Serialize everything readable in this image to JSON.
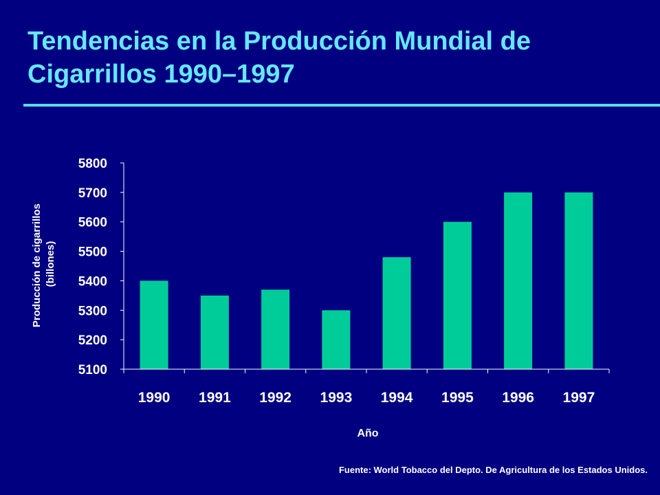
{
  "slide": {
    "title": "Tendencias en la Producción Mundial de Cigarrillos 1990–1997",
    "source": "Fuente: World Tobacco del Depto. De Agricultura de los Estados Unidos."
  },
  "colors": {
    "background": "#000080",
    "title": "#66e6ff",
    "rule": "#55ddff",
    "bar": "#00cc99",
    "axis": "#ffffff"
  },
  "chart_data": {
    "type": "bar",
    "title": "",
    "xlabel": "Año",
    "ylabel": "Producción de cigarrillos (billones)",
    "ylabel_lines": [
      "Producción de cigarrillos",
      "(billones)"
    ],
    "categories": [
      "1990",
      "1991",
      "1992",
      "1993",
      "1994",
      "1995",
      "1996",
      "1997"
    ],
    "values": [
      5400,
      5350,
      5370,
      5300,
      5480,
      5600,
      5700,
      5700
    ],
    "ylim": [
      5100,
      5800
    ],
    "yticks": [
      5100,
      5200,
      5300,
      5400,
      5500,
      5600,
      5700,
      5800
    ],
    "grid": false,
    "legend": "none"
  }
}
